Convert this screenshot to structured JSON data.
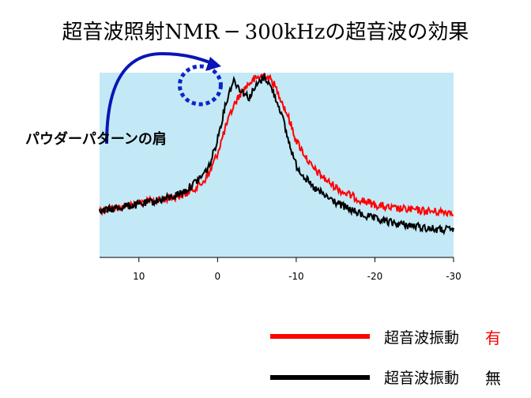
{
  "title": "超音波照射NMR ─ 300kHzの超音波の効果",
  "annotation": "パウダーパターンの肩",
  "colors": {
    "plot_bg": "#c3e9f7",
    "series_red": "#ff0000",
    "series_black": "#000000",
    "arrow": "#0a16b5",
    "circle": "#0d24c9",
    "flag_on": "#ff0000"
  },
  "legend": [
    {
      "label": "超音波振動",
      "flag": "有",
      "color": "#ff0000"
    },
    {
      "label": "超音波振動",
      "flag": "無",
      "color": "#000000"
    }
  ],
  "chart_data": {
    "type": "line",
    "x_axis_reversed": true,
    "xlim": [
      15,
      -30
    ],
    "xticks": [
      10,
      0,
      -10,
      -20,
      -30
    ],
    "xtick_labels": [
      "10",
      "0",
      "-10",
      "-20",
      "-30"
    ],
    "ylim": [
      0,
      1
    ],
    "xlabel": "",
    "ylabel": "",
    "grid": false,
    "series": [
      {
        "name": "超音波振動 有",
        "color": "#ff0000",
        "x": [
          15,
          12,
          10,
          8,
          6,
          4,
          2,
          1,
          0,
          -1,
          -2,
          -3,
          -4,
          -5,
          -6,
          -7,
          -8,
          -9,
          -10,
          -12,
          -14,
          -16,
          -18,
          -20,
          -22,
          -25,
          -28,
          -30
        ],
        "y": [
          0.23,
          0.25,
          0.27,
          0.28,
          0.3,
          0.32,
          0.38,
          0.44,
          0.55,
          0.69,
          0.81,
          0.89,
          0.94,
          0.97,
          0.99,
          0.95,
          0.86,
          0.75,
          0.62,
          0.47,
          0.39,
          0.33,
          0.29,
          0.26,
          0.24,
          0.23,
          0.22,
          0.22
        ]
      },
      {
        "name": "超音波振動 無",
        "color": "#000000",
        "x": [
          15,
          12,
          10,
          8,
          6,
          4,
          2,
          1,
          0,
          -1,
          -2,
          -3,
          -4,
          -5,
          -6,
          -7,
          -8,
          -9,
          -10,
          -12,
          -14,
          -16,
          -18,
          -20,
          -22,
          -25,
          -28,
          -30
        ],
        "y": [
          0.22,
          0.25,
          0.26,
          0.28,
          0.3,
          0.34,
          0.42,
          0.48,
          0.63,
          0.82,
          0.96,
          0.9,
          0.86,
          0.93,
          0.98,
          0.9,
          0.79,
          0.62,
          0.48,
          0.36,
          0.3,
          0.25,
          0.21,
          0.18,
          0.16,
          0.14,
          0.12,
          0.12
        ]
      }
    ]
  }
}
